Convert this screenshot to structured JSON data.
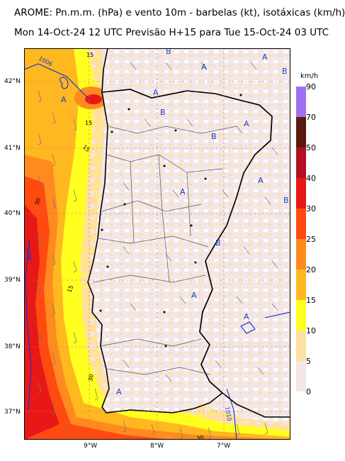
{
  "title_line1": "AROME: Pn.m.m. (hPa) e vento 10m - barbelas (kt), isotáxicas (km/h)",
  "title_line2": "Mon 14-Oct-24 12 UTC Previsão H+15 para Tue 15-Oct-24 03 UTC",
  "lat_labels": [
    "42°N",
    "41°N",
    "40°N",
    "39°N",
    "38°N",
    "37°N"
  ],
  "lon_labels": [
    "9°W",
    "8°W",
    "7°W"
  ],
  "colorbar": {
    "unit": "km/h",
    "levels": [
      "90",
      "70",
      "50",
      "40",
      "30",
      "25",
      "20",
      "15",
      "10",
      "5",
      "0"
    ],
    "colors": [
      "#a070f0",
      "#5a1a10",
      "#b01020",
      "#e81818",
      "#ff4a10",
      "#ff8a20",
      "#ffb820",
      "#ffff20",
      "#ffe0a0",
      "#f2e6e6"
    ]
  },
  "isobar_labels": [
    "1006",
    "1006",
    "1010",
    "15",
    "15",
    "15",
    "15",
    "30",
    "30",
    "30"
  ],
  "pressure_marks": [
    "A",
    "A",
    "A",
    "A",
    "A",
    "A",
    "A",
    "A",
    "A",
    "A",
    "B",
    "B",
    "B",
    "B",
    "B",
    "B"
  ]
}
